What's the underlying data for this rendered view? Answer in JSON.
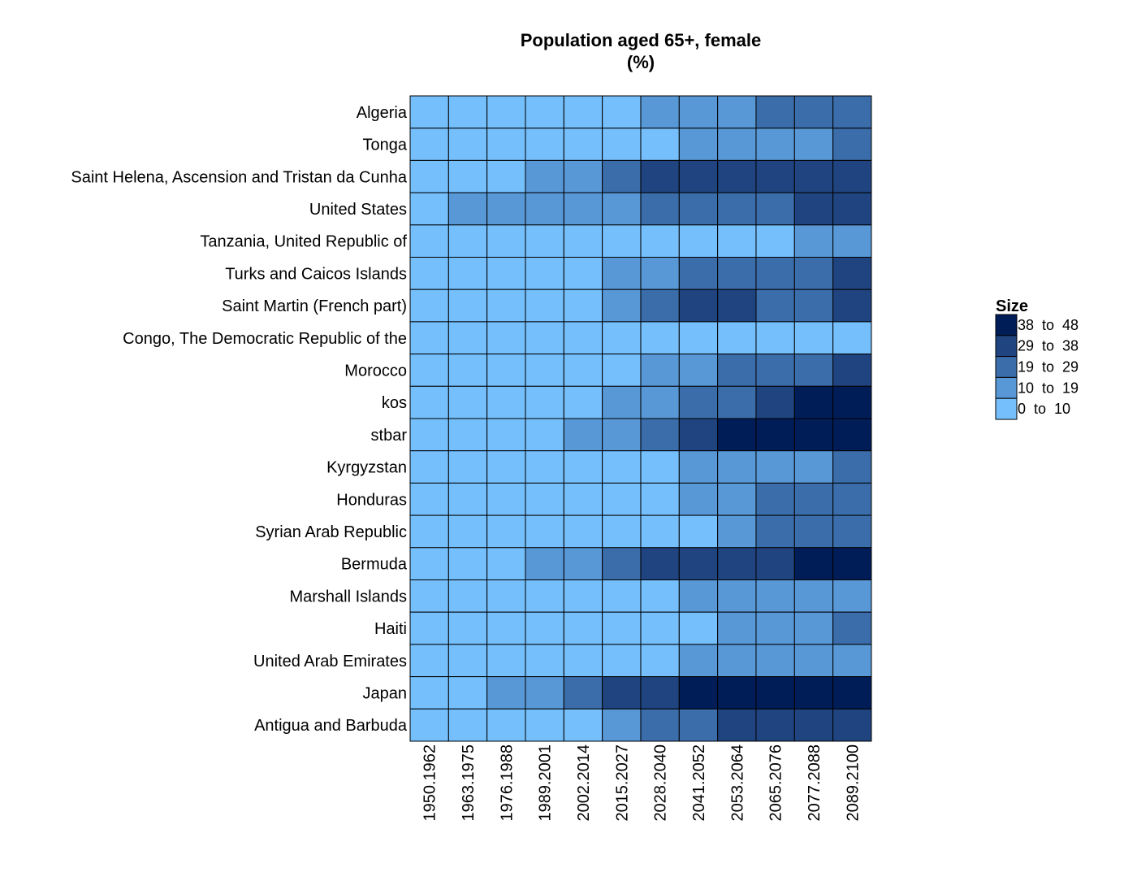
{
  "chart_data": {
    "type": "heatmap",
    "title": "Population aged 65+, female",
    "subtitle": "(%)",
    "columns": [
      "1950.1962",
      "1963.1975",
      "1976.1988",
      "1989.2001",
      "2002.2014",
      "2015.2027",
      "2028.2040",
      "2041.2052",
      "2053.2064",
      "2065.2076",
      "2077.2088",
      "2089.2100"
    ],
    "rows": [
      "Algeria",
      "Tonga",
      "Saint Helena, Ascension and Tristan da Cunha",
      "United States",
      "Tanzania, United Republic of",
      "Turks and Caicos Islands",
      "Saint Martin (French part)",
      "Congo, The Democratic Republic of the",
      "Morocco",
      "kos",
      "stbar",
      "Kyrgyzstan",
      "Honduras",
      "Syrian Arab Republic",
      "Bermuda",
      "Marshall Islands",
      "Haiti",
      "United Arab Emirates",
      "Japan",
      "Antigua and Barbuda"
    ],
    "bin_index_matrix": [
      [
        0,
        0,
        0,
        0,
        0,
        0,
        1,
        1,
        1,
        2,
        2,
        2
      ],
      [
        0,
        0,
        0,
        0,
        0,
        0,
        0,
        1,
        1,
        1,
        1,
        2
      ],
      [
        0,
        0,
        0,
        1,
        1,
        2,
        3,
        3,
        3,
        3,
        3,
        3
      ],
      [
        0,
        1,
        1,
        1,
        1,
        1,
        2,
        2,
        2,
        2,
        3,
        3
      ],
      [
        0,
        0,
        0,
        0,
        0,
        0,
        0,
        0,
        0,
        0,
        1,
        1
      ],
      [
        0,
        0,
        0,
        0,
        0,
        1,
        1,
        2,
        2,
        2,
        2,
        3
      ],
      [
        0,
        0,
        0,
        0,
        0,
        1,
        2,
        3,
        3,
        2,
        2,
        3
      ],
      [
        0,
        0,
        0,
        0,
        0,
        0,
        0,
        0,
        0,
        0,
        0,
        0
      ],
      [
        0,
        0,
        0,
        0,
        0,
        0,
        1,
        1,
        2,
        2,
        2,
        3
      ],
      [
        0,
        0,
        0,
        0,
        0,
        1,
        1,
        2,
        2,
        3,
        4,
        4
      ],
      [
        0,
        0,
        0,
        0,
        1,
        1,
        2,
        3,
        4,
        4,
        4,
        4
      ],
      [
        0,
        0,
        0,
        0,
        0,
        0,
        0,
        1,
        1,
        1,
        1,
        2
      ],
      [
        0,
        0,
        0,
        0,
        0,
        0,
        0,
        1,
        1,
        2,
        2,
        2
      ],
      [
        0,
        0,
        0,
        0,
        0,
        0,
        0,
        0,
        1,
        2,
        2,
        2
      ],
      [
        0,
        0,
        0,
        1,
        1,
        2,
        3,
        3,
        3,
        3,
        4,
        4
      ],
      [
        0,
        0,
        0,
        0,
        0,
        0,
        0,
        1,
        1,
        1,
        1,
        1
      ],
      [
        0,
        0,
        0,
        0,
        0,
        0,
        0,
        0,
        1,
        1,
        1,
        2
      ],
      [
        0,
        0,
        0,
        0,
        0,
        0,
        0,
        1,
        1,
        1,
        1,
        1
      ],
      [
        0,
        0,
        1,
        1,
        2,
        3,
        3,
        4,
        4,
        4,
        4,
        4
      ],
      [
        0,
        0,
        0,
        0,
        0,
        1,
        2,
        2,
        3,
        3,
        3,
        3
      ]
    ],
    "legend": {
      "title": "Size",
      "placement": "right",
      "bins": [
        {
          "label": "0  to  10",
          "color": "#74BFFC"
        },
        {
          "label": "10  to  19",
          "color": "#5898D7"
        },
        {
          "label": "19  to  29",
          "color": "#3B6DAA"
        },
        {
          "label": "29  to  38",
          "color": "#1F447F"
        },
        {
          "label": "38  to  48",
          "color": "#011D58"
        }
      ]
    },
    "grid": false
  }
}
